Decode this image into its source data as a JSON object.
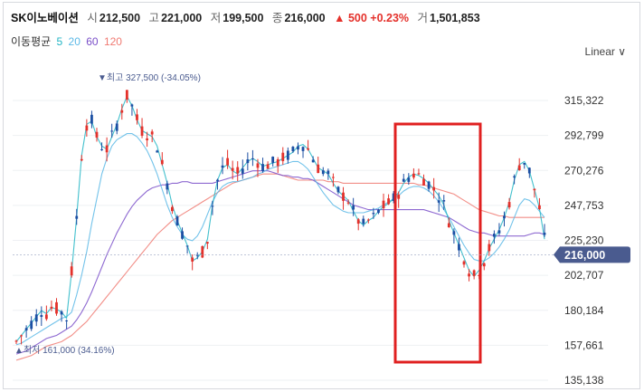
{
  "quote": {
    "name": "SK이노베이션",
    "open_label": "시",
    "open": "212,500",
    "high_label": "고",
    "high": "221,000",
    "low_label": "저",
    "low": "199,500",
    "close_label": "종",
    "close": "216,000",
    "change": "▲ 500 +0.23%",
    "volume_label": "거",
    "volume": "1,501,853"
  },
  "moving_average": {
    "label": "이동평균",
    "periods": [
      {
        "period": "5",
        "color": "#21b5c4"
      },
      {
        "period": "20",
        "color": "#5ab8e6"
      },
      {
        "period": "60",
        "color": "#7a4fc9"
      },
      {
        "period": "120",
        "color": "#f07a72"
      }
    ]
  },
  "scale_toggle": "Linear ∨",
  "chart_data": {
    "type": "candlestick",
    "y_ticks": [
      "315,322",
      "292,799",
      "270,276",
      "247,753",
      "225,230",
      "202,707",
      "180,184",
      "157,661",
      "135,138"
    ],
    "ylim": [
      135138,
      327000
    ],
    "current_price_label": "216,000",
    "current_price": 216000,
    "high_annotation": "▼최고 327,500 (-34.05%)",
    "low_annotation": "▲최저 161,000 (34.16%)",
    "colors": {
      "up": "#e4312b",
      "down": "#1c4fa3",
      "price_tag": "#4a5b8f",
      "highlight": "#e02020"
    },
    "ma5": [
      160000,
      164000,
      168000,
      172000,
      176000,
      180000,
      178000,
      182000,
      181000,
      179000,
      175000,
      205000,
      240000,
      280000,
      300000,
      302000,
      292000,
      286000,
      284000,
      292000,
      300000,
      310000,
      318000,
      312000,
      303000,
      296000,
      294000,
      292000,
      286000,
      274000,
      262000,
      248000,
      238000,
      230000,
      222000,
      212000,
      214000,
      218000,
      226000,
      248000,
      264000,
      272000,
      274000,
      270000,
      268000,
      272000,
      276000,
      278000,
      276000,
      273000,
      274000,
      275000,
      276000,
      278000,
      280000,
      282000,
      286000,
      287000,
      284000,
      278000,
      272000,
      270000,
      268000,
      262000,
      257000,
      254000,
      251000,
      244000,
      238000,
      235000,
      238000,
      240000,
      244000,
      247000,
      249000,
      252000,
      256000,
      262000,
      266000,
      268000,
      267000,
      265000,
      262000,
      258000,
      254000,
      248000,
      238000,
      230000,
      222000,
      214000,
      206000,
      202000,
      206000,
      212000,
      220000,
      226000,
      232000,
      240000,
      250000,
      264000,
      274000,
      276000,
      270000,
      258000,
      246000,
      226000
    ],
    "ma20": [
      158000,
      159000,
      161000,
      163000,
      165000,
      167000,
      169000,
      171000,
      173000,
      175000,
      176000,
      179000,
      190000,
      203000,
      218000,
      236000,
      252000,
      268000,
      278000,
      286000,
      290000,
      292000,
      294000,
      294000,
      292000,
      288000,
      283000,
      276000,
      268000,
      258000,
      248000,
      240000,
      234000,
      229000,
      226000,
      225000,
      228000,
      234000,
      242000,
      250000,
      256000,
      260000,
      262000,
      263000,
      263000,
      264000,
      265000,
      266000,
      268000,
      269000,
      271000,
      272000,
      273000,
      274000,
      275000,
      276000,
      276000,
      274000,
      271000,
      266000,
      261000,
      256000,
      252000,
      248000,
      246000,
      244000,
      243000,
      243000,
      243000,
      243000,
      244000,
      245000,
      246000,
      248000,
      250000,
      252000,
      254000,
      257000,
      259000,
      260000,
      260000,
      259000,
      257000,
      254000,
      250000,
      245000,
      240000,
      234000,
      228000,
      222000,
      217000,
      213000,
      212000,
      212000,
      214000,
      217000,
      221000,
      226000,
      232000,
      240000,
      248000,
      252000,
      251000,
      248000,
      244000,
      240000
    ],
    "ma60": [
      152000,
      153000,
      154000,
      156000,
      158000,
      160000,
      162000,
      163000,
      164000,
      166000,
      168000,
      170000,
      174000,
      179000,
      185000,
      192000,
      200000,
      208000,
      216000,
      223000,
      230000,
      236000,
      242000,
      247000,
      251000,
      254000,
      257000,
      259000,
      260000,
      261000,
      261000,
      262000,
      262000,
      263000,
      263000,
      262000,
      262000,
      262000,
      262000,
      262000,
      263000,
      264000,
      265000,
      266000,
      267000,
      268000,
      269000,
      270000,
      270000,
      270000,
      270000,
      269000,
      268000,
      267000,
      267000,
      266000,
      266000,
      265000,
      265000,
      264000,
      262000,
      260000,
      258000,
      256000,
      254000,
      252000,
      250000,
      248000,
      247000,
      246000,
      245000,
      245000,
      245000,
      245000,
      245000,
      245000,
      245000,
      245000,
      245000,
      245000,
      245000,
      245000,
      244000,
      243000,
      242000,
      241000,
      240000,
      238000,
      236000,
      234000,
      232000,
      231000,
      230000,
      230000,
      229000,
      228000,
      228000,
      228000,
      228000,
      228000,
      228000,
      228000,
      229000,
      230000,
      230000,
      229000
    ],
    "ma120": [
      148000,
      149000,
      150000,
      151000,
      153000,
      155000,
      157000,
      158000,
      159000,
      160000,
      162000,
      164000,
      167000,
      170000,
      173000,
      177000,
      181000,
      185000,
      189000,
      193000,
      197000,
      201000,
      205000,
      209000,
      213000,
      217000,
      221000,
      225000,
      229000,
      232000,
      235000,
      238000,
      240000,
      242000,
      244000,
      246000,
      248000,
      250000,
      252000,
      254000,
      256000,
      258000,
      260000,
      262000,
      263000,
      264000,
      265000,
      266000,
      267000,
      268000,
      268000,
      268000,
      268000,
      267000,
      266000,
      265000,
      264000,
      264000,
      264000,
      264000,
      264000,
      264000,
      263000,
      263000,
      263000,
      262000,
      262000,
      262000,
      262000,
      262000,
      262000,
      262000,
      262000,
      262000,
      262000,
      262000,
      262000,
      262000,
      262000,
      262000,
      261000,
      261000,
      260000,
      259000,
      258000,
      257000,
      256000,
      255000,
      253000,
      251000,
      249000,
      247000,
      245000,
      244000,
      243000,
      242000,
      241000,
      241000,
      240000,
      240000,
      240000,
      240000,
      240000,
      240000,
      240000,
      240000
    ]
  }
}
